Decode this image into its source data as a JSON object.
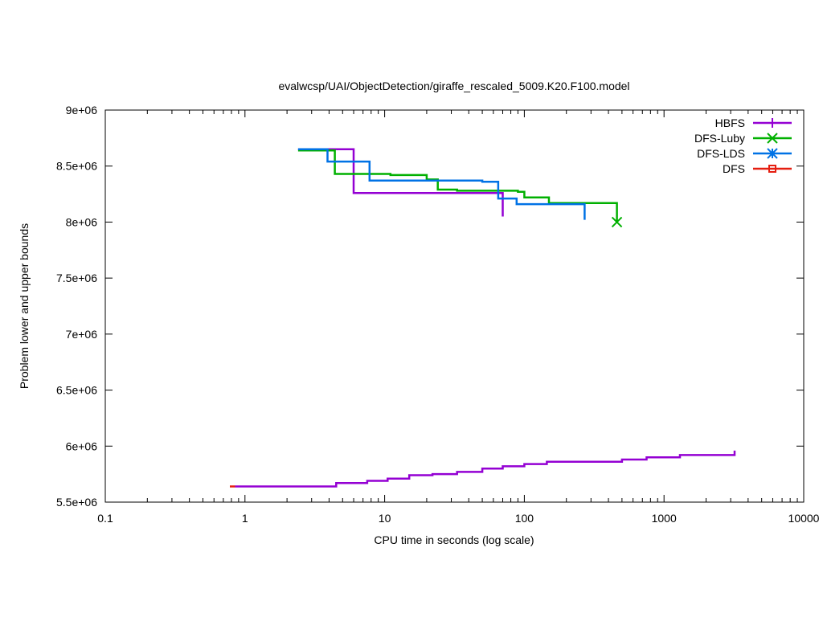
{
  "chart_data": {
    "type": "line",
    "title": "evalwcsp/UAI/ObjectDetection/giraffe_rescaled_5009.K20.F100.model",
    "xlabel": "CPU time in seconds (log scale)",
    "ylabel": "Problem lower and upper bounds",
    "xscale": "log",
    "xlim": [
      0.1,
      10000
    ],
    "ylim": [
      5500000,
      9000000
    ],
    "x_ticks": [
      0.1,
      1,
      10,
      100,
      1000,
      10000
    ],
    "x_tick_labels": [
      "0.1",
      "1",
      "10",
      "100",
      "1000",
      "10000"
    ],
    "y_ticks": [
      5500000,
      6000000,
      6500000,
      7000000,
      7500000,
      8000000,
      8500000,
      9000000
    ],
    "y_tick_labels": [
      "5.5e+06",
      "6e+06",
      "6.5e+06",
      "7e+06",
      "7.5e+06",
      "8e+06",
      "8.5e+06",
      "9e+06"
    ],
    "legend_position": "top-right",
    "series": [
      {
        "name": "HBFS",
        "color": "#9400d3",
        "marker": "plus",
        "step": true,
        "upper_bound": [
          [
            2.4,
            8650000
          ],
          [
            6.0,
            8260000
          ],
          [
            70,
            8240000
          ],
          [
            70,
            8050000
          ]
        ],
        "lower_bound": [
          [
            0.85,
            5640000
          ],
          [
            4.5,
            5670000
          ],
          [
            7.5,
            5690000
          ],
          [
            10.5,
            5710000
          ],
          [
            15,
            5740000
          ],
          [
            22,
            5750000
          ],
          [
            33,
            5770000
          ],
          [
            50,
            5800000
          ],
          [
            70,
            5820000
          ],
          [
            100,
            5840000
          ],
          [
            145,
            5860000
          ],
          [
            500,
            5880000
          ],
          [
            750,
            5900000
          ],
          [
            1300,
            5920000
          ],
          [
            3200,
            5940000
          ],
          [
            3200,
            5960000
          ]
        ],
        "end_point": null
      },
      {
        "name": "DFS-Luby",
        "color": "#00b000",
        "marker": "x",
        "step": true,
        "upper_bound": [
          [
            2.4,
            8640000
          ],
          [
            4.4,
            8430000
          ],
          [
            11,
            8420000
          ],
          [
            20,
            8380000
          ],
          [
            24,
            8290000
          ],
          [
            33,
            8280000
          ],
          [
            90,
            8270000
          ],
          [
            100,
            8220000
          ],
          [
            150,
            8170000
          ],
          [
            460,
            8170000
          ],
          [
            460,
            8000000
          ]
        ],
        "lower_bound": [],
        "end_point": [
          460,
          8000000
        ]
      },
      {
        "name": "DFS-LDS",
        "color": "#0072e5",
        "marker": "star",
        "step": true,
        "upper_bound": [
          [
            2.4,
            8650000
          ],
          [
            3.9,
            8540000
          ],
          [
            7.8,
            8370000
          ],
          [
            24,
            8370000
          ],
          [
            50,
            8360000
          ],
          [
            65,
            8210000
          ],
          [
            88,
            8160000
          ],
          [
            270,
            8160000
          ],
          [
            270,
            8020000
          ]
        ],
        "lower_bound": [],
        "end_point": null
      },
      {
        "name": "DFS",
        "color": "#e51e10",
        "marker": "square",
        "step": true,
        "upper_bound": [],
        "lower_bound": [
          [
            0.78,
            5640000
          ],
          [
            0.85,
            5640000
          ]
        ],
        "end_point": null
      }
    ]
  }
}
